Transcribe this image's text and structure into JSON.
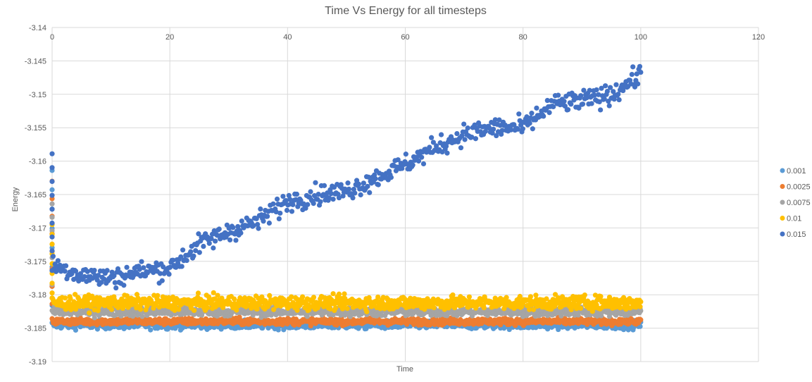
{
  "chart_data": {
    "type": "scatter",
    "title": "Time Vs Energy for all timesteps",
    "xlabel": "Time",
    "ylabel": "Energy",
    "xlim": [
      0,
      120
    ],
    "ylim": [
      -3.19,
      -3.14
    ],
    "x_ticks": [
      "0",
      "20",
      "40",
      "60",
      "80",
      "100",
      "120"
    ],
    "y_ticks": [
      "-3.14",
      "-3.145",
      "-3.15",
      "-3.155",
      "-3.16",
      "-3.165",
      "-3.17",
      "-3.175",
      "-3.18",
      "-3.185",
      "-3.19"
    ],
    "grid": true,
    "x_axis_position": "top",
    "legend_position": "right",
    "series": [
      {
        "name": "0.001",
        "color": "#5B9BD5",
        "mean": -3.1845,
        "spread": 0.0006,
        "start": -3.1614,
        "x_end": 100
      },
      {
        "name": "0.0025",
        "color": "#ED7D31",
        "mean": -3.184,
        "spread": 0.0005,
        "start": -3.163,
        "x_end": 100
      },
      {
        "name": "0.0075",
        "color": "#A5A5A5",
        "mean": -3.1825,
        "spread": 0.0007,
        "start": -3.1664,
        "x_end": 100
      },
      {
        "name": "0.01",
        "color": "#FFC000",
        "mean": -3.1812,
        "spread": 0.001,
        "start": -3.1695,
        "x_end": 100
      },
      {
        "name": "0.015",
        "color": "#4472C4",
        "start": -3.1589,
        "x_end": 100,
        "trend": [
          [
            0,
            -3.1755
          ],
          [
            5,
            -3.177
          ],
          [
            10,
            -3.1775
          ],
          [
            15,
            -3.1765
          ],
          [
            20,
            -3.176
          ],
          [
            25,
            -3.1725
          ],
          [
            30,
            -3.1705
          ],
          [
            35,
            -3.169
          ],
          [
            40,
            -3.166
          ],
          [
            45,
            -3.165
          ],
          [
            50,
            -3.1645
          ],
          [
            55,
            -3.1625
          ],
          [
            60,
            -3.1605
          ],
          [
            65,
            -3.158
          ],
          [
            70,
            -3.156
          ],
          [
            75,
            -3.155
          ],
          [
            80,
            -3.155
          ],
          [
            85,
            -3.1515
          ],
          [
            90,
            -3.151
          ],
          [
            95,
            -3.15
          ],
          [
            100,
            -3.147
          ]
        ],
        "spread": 0.0015
      }
    ]
  }
}
